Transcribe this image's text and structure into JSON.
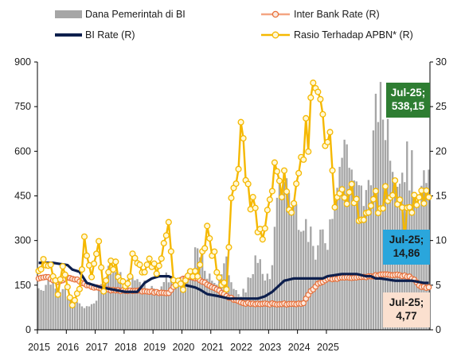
{
  "legend": {
    "dana": "Dana Pemerintah di BI",
    "interbank": "Inter Bank Rate (R)",
    "birate": "BI Rate (R)",
    "rasio": "Rasio Terhadap APBN* (R)"
  },
  "colors": {
    "bars": "#a6a6a6",
    "interbank_line": "#f4a582",
    "interbank_marker": "#e8703a",
    "birate": "#0d1f4d",
    "rasio": "#f5b800",
    "callout_green": "#2e7d32",
    "callout_blue": "#2aa6dc",
    "callout_peach": "#fbe0cf"
  },
  "callouts": {
    "dana": {
      "line1": "Jul-25;",
      "line2": "538,15"
    },
    "rasio": {
      "line1": "Jul-25;",
      "line2": "14,86"
    },
    "interbank": {
      "line1": "Jul-25;",
      "line2": "4,77"
    }
  },
  "chart_data": {
    "type": "bar+line",
    "title": "",
    "x_ticks": [
      "2015",
      "2016",
      "2017",
      "2018",
      "2019",
      "2020",
      "2021",
      "2022",
      "2023",
      "2024",
      "2025"
    ],
    "x_start": "2015-01",
    "x_end": "2025-07",
    "y_left": {
      "min": 0,
      "max": 900,
      "ticks": [
        0,
        150,
        300,
        450,
        600,
        750,
        900
      ]
    },
    "y_right": {
      "min": 0,
      "max": 30,
      "ticks": [
        0,
        5,
        10,
        15,
        20,
        25,
        30
      ]
    },
    "anchors": {
      "dana": [
        [
          0,
          140
        ],
        [
          6,
          170
        ],
        [
          12,
          110
        ],
        [
          18,
          80
        ],
        [
          20,
          70
        ],
        [
          24,
          105
        ],
        [
          30,
          220
        ],
        [
          36,
          150
        ],
        [
          42,
          175
        ],
        [
          48,
          130
        ],
        [
          54,
          180
        ],
        [
          60,
          150
        ],
        [
          66,
          260
        ],
        [
          72,
          150
        ],
        [
          78,
          220
        ],
        [
          84,
          100
        ],
        [
          90,
          230
        ],
        [
          96,
          165
        ],
        [
          99,
          400
        ],
        [
          102,
          520
        ],
        [
          106,
          410
        ],
        [
          110,
          380
        ],
        [
          115,
          250
        ],
        [
          118,
          320
        ],
        [
          120,
          310
        ],
        [
          124,
          540
        ],
        [
          128,
          630
        ],
        [
          132,
          460
        ],
        [
          136,
          440
        ],
        [
          141,
          760
        ],
        [
          145,
          690
        ],
        [
          149,
          520
        ],
        [
          153,
          570
        ],
        [
          157,
          480
        ],
        [
          161,
          470
        ],
        [
          165,
          530
        ],
        [
          167,
          560
        ],
        [
          169,
          640
        ],
        [
          171,
          600
        ],
        [
          174,
          538
        ]
      ],
      "rasio": [
        [
          0,
          6.5
        ],
        [
          4,
          8
        ],
        [
          8,
          4
        ],
        [
          10,
          7.5
        ],
        [
          14,
          2.5
        ],
        [
          17,
          5
        ],
        [
          19,
          10
        ],
        [
          22,
          6
        ],
        [
          25,
          9
        ],
        [
          27,
          4.5
        ],
        [
          30,
          8
        ],
        [
          33,
          6.5
        ],
        [
          36,
          4.5
        ],
        [
          40,
          9
        ],
        [
          43,
          7
        ],
        [
          46,
          7.5
        ],
        [
          49,
          7
        ],
        [
          52,
          10
        ],
        [
          54,
          11
        ],
        [
          56,
          5
        ],
        [
          60,
          5
        ],
        [
          63,
          6
        ],
        [
          66,
          6.5
        ],
        [
          70,
          11
        ],
        [
          72,
          9
        ],
        [
          75,
          6
        ],
        [
          78,
          5
        ],
        [
          80,
          14
        ],
        [
          84,
          21
        ],
        [
          85,
          20
        ],
        [
          88,
          14
        ],
        [
          90,
          13
        ],
        [
          93,
          10
        ],
        [
          96,
          15
        ],
        [
          99,
          18
        ],
        [
          102,
          16
        ],
        [
          105,
          14
        ],
        [
          110,
          20
        ],
        [
          113,
          24
        ],
        [
          116,
          27.5
        ],
        [
          118,
          23
        ],
        [
          121,
          22
        ],
        [
          123,
          15
        ],
        [
          125,
          16
        ],
        [
          128,
          15
        ],
        [
          130,
          15
        ],
        [
          133,
          13.5
        ],
        [
          135,
          14
        ],
        [
          138,
          13
        ],
        [
          140,
          14.5
        ],
        [
          142,
          13
        ],
        [
          144,
          15
        ],
        [
          146,
          15
        ],
        [
          149,
          15
        ],
        [
          152,
          11.5
        ],
        [
          154,
          14.86
        ]
      ],
      "interbank": [
        [
          0,
          5.8
        ],
        [
          4,
          5.9
        ],
        [
          8,
          5.3
        ],
        [
          12,
          5.9
        ],
        [
          16,
          5.6
        ],
        [
          20,
          5.0
        ],
        [
          24,
          4.7
        ],
        [
          30,
          4.4
        ],
        [
          36,
          4.4
        ],
        [
          42,
          4.4
        ],
        [
          48,
          4.2
        ],
        [
          54,
          4.1
        ],
        [
          58,
          5.4
        ],
        [
          62,
          5.9
        ],
        [
          66,
          5.8
        ],
        [
          70,
          5.1
        ],
        [
          72,
          4.8
        ],
        [
          75,
          4.4
        ],
        [
          78,
          3.8
        ],
        [
          81,
          3.4
        ],
        [
          85,
          3.0
        ],
        [
          90,
          2.9
        ],
        [
          96,
          2.9
        ],
        [
          102,
          2.9
        ],
        [
          106,
          2.9
        ],
        [
          110,
          3.0
        ],
        [
          113,
          4.3
        ],
        [
          116,
          5.2
        ],
        [
          120,
          5.7
        ],
        [
          126,
          5.8
        ],
        [
          132,
          5.9
        ],
        [
          138,
          6.0
        ],
        [
          144,
          6.2
        ],
        [
          150,
          6.1
        ],
        [
          154,
          6.0
        ],
        [
          156,
          5.6
        ],
        [
          159,
          4.77
        ]
      ],
      "birate": [
        [
          0,
          7.5
        ],
        [
          6,
          7.5
        ],
        [
          12,
          7.25
        ],
        [
          14,
          6.75
        ],
        [
          17,
          6.5
        ],
        [
          20,
          5.25
        ],
        [
          26,
          4.75
        ],
        [
          36,
          4.25
        ],
        [
          41,
          4.25
        ],
        [
          44,
          5.25
        ],
        [
          47,
          5.75
        ],
        [
          50,
          6.0
        ],
        [
          54,
          6.0
        ],
        [
          56,
          5.75
        ],
        [
          58,
          5.5
        ],
        [
          61,
          5.0
        ],
        [
          65,
          4.75
        ],
        [
          67,
          4.5
        ],
        [
          70,
          4.0
        ],
        [
          75,
          3.75
        ],
        [
          79,
          3.5
        ],
        [
          91,
          3.5
        ],
        [
          94,
          3.75
        ],
        [
          97,
          4.25
        ],
        [
          100,
          5.0
        ],
        [
          102,
          5.5
        ],
        [
          106,
          5.75
        ],
        [
          110,
          5.75
        ],
        [
          118,
          5.75
        ],
        [
          120,
          6.0
        ],
        [
          126,
          6.25
        ],
        [
          132,
          6.25
        ],
        [
          136,
          6.0
        ],
        [
          138,
          6.0
        ],
        [
          140,
          5.75
        ],
        [
          142,
          5.75
        ],
        [
          148,
          5.5
        ],
        [
          155,
          5.5
        ],
        [
          160,
          5.25
        ]
      ]
    },
    "last_values": {
      "dana": 538.15,
      "rasio": 14.86,
      "interbank": 4.77
    }
  }
}
